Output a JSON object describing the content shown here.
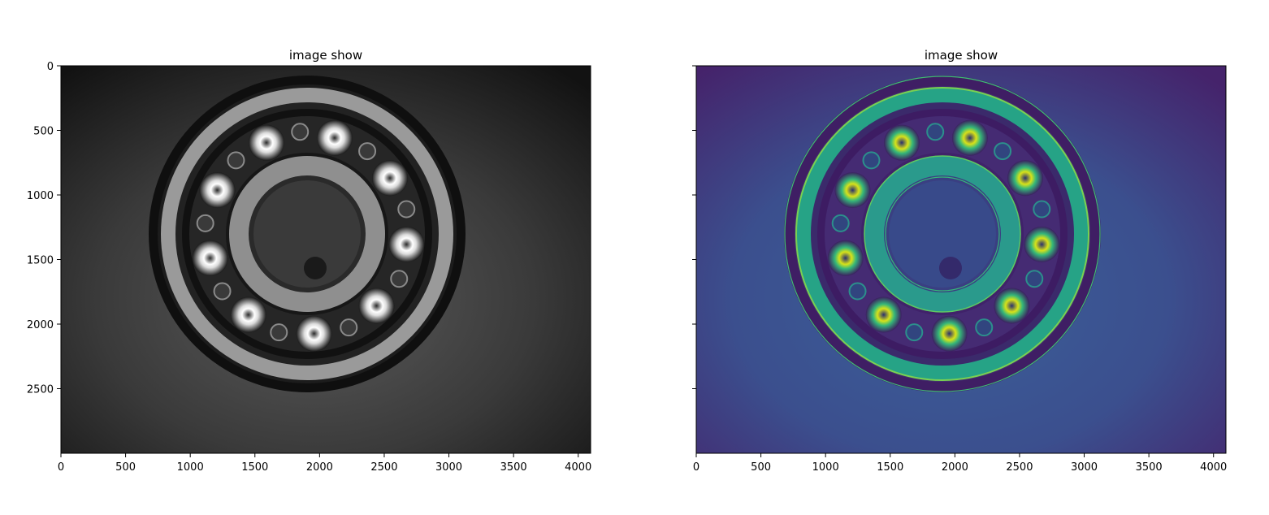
{
  "chart_data": [
    {
      "type": "image",
      "title": "image show",
      "colormap": "gray",
      "xlim": [
        0,
        4096
      ],
      "ylim": [
        3000,
        0
      ],
      "xticks": [
        0,
        500,
        1000,
        1500,
        2000,
        2500,
        3000,
        3500,
        4000
      ],
      "yticks": [
        0,
        500,
        1000,
        1500,
        2000,
        2500
      ],
      "ytick_labels_shown": true,
      "image_content": "ball bearing photograph"
    },
    {
      "type": "image",
      "title": "image show",
      "colormap": "viridis",
      "xlim": [
        0,
        4096
      ],
      "ylim": [
        3000,
        0
      ],
      "xticks": [
        0,
        500,
        1000,
        1500,
        2000,
        2500,
        3000,
        3500,
        4000
      ],
      "yticks": [
        0,
        500,
        1000,
        1500,
        2000,
        2500
      ],
      "ytick_labels_shown": false,
      "image_content": "ball bearing photograph (edge-enhanced)"
    }
  ]
}
